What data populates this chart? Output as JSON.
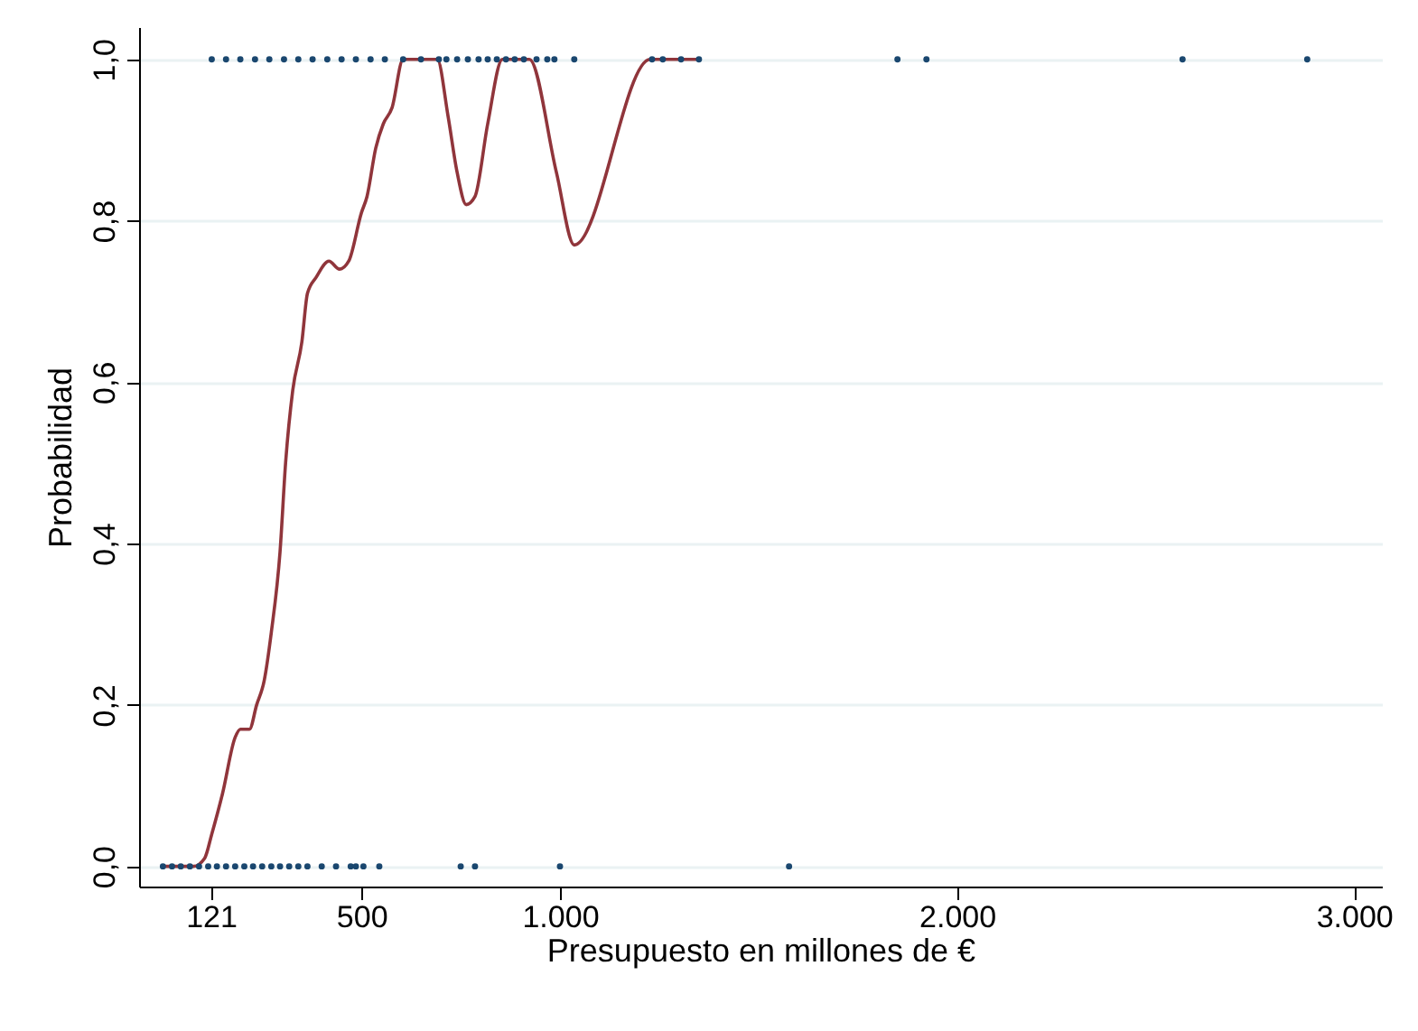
{
  "chart_data": {
    "type": "scatter",
    "xlabel": "Presupuesto en millones de €",
    "ylabel": "Probabilidad",
    "xlim": [
      -60,
      3070
    ],
    "ylim": [
      -0.025,
      1.04
    ],
    "xticks": [
      121,
      500,
      {
        "value": 1000,
        "label": "1.000"
      },
      {
        "value": 2000,
        "label": "2.000"
      },
      {
        "value": 3000,
        "label": "3.000"
      }
    ],
    "yticks": [
      {
        "value": 0,
        "label": "0,0"
      },
      {
        "value": 0.2,
        "label": "0,2"
      },
      {
        "value": 0.4,
        "label": "0,4"
      },
      {
        "value": 0.6,
        "label": "0,6"
      },
      {
        "value": 0.8,
        "label": "0,8"
      },
      {
        "value": 1,
        "label": "1,0"
      }
    ],
    "grid": "y",
    "marker": "circle",
    "series": [
      {
        "color": "#1a476f",
        "x": [
          123,
          159,
          195,
          232,
          268,
          305,
          341,
          377,
          414,
          450,
          486,
          523,
          559,
          605,
          650,
          695,
          714,
          741,
          768,
          795,
          818,
          841,
          864,
          886,
          909,
          941,
          968,
          986,
          1036,
          1232,
          1259,
          1305,
          1350,
          1850,
          1923,
          2568,
          2882
        ],
        "values": [
          1,
          1,
          1,
          1,
          1,
          1,
          1,
          1,
          1,
          1,
          1,
          1,
          1,
          1,
          1,
          1,
          1,
          1,
          1,
          1,
          1,
          1,
          1,
          1,
          1,
          1,
          1,
          1,
          1,
          1,
          1,
          1,
          1,
          1,
          1,
          1,
          1
        ]
      },
      {
        "color": "#1a476f",
        "x": [
          0,
          23,
          45,
          68,
          91,
          114,
          136,
          159,
          182,
          205,
          227,
          250,
          273,
          295,
          318,
          341,
          364,
          400,
          436,
          473,
          486,
          505,
          545,
          750,
          786,
          1000,
          1577
        ],
        "values": [
          0,
          0,
          0,
          0,
          0,
          0,
          0,
          0,
          0,
          0,
          0,
          0,
          0,
          0,
          0,
          0,
          0,
          0,
          0,
          0,
          0,
          0,
          0,
          0,
          0,
          0,
          0
        ]
      },
      {
        "type": "line",
        "color": "#90353b",
        "marker": "none",
        "x": [
          0,
          77,
          105,
          123,
          150,
          182,
          195,
          218,
          236,
          255,
          273,
          295,
          309,
          327,
          350,
          364,
          386,
          418,
          445,
          468,
          500,
          514,
          536,
          555,
          577,
          605,
          691,
          718,
          741,
          764,
          786,
          818,
          855,
          923,
          991,
          1036,
          1227,
          1350
        ],
        "values": [
          0,
          0,
          0.01,
          0.04,
          0.09,
          0.16,
          0.17,
          0.17,
          0.2,
          0.23,
          0.29,
          0.39,
          0.5,
          0.59,
          0.65,
          0.71,
          0.73,
          0.75,
          0.74,
          0.75,
          0.81,
          0.83,
          0.89,
          0.92,
          0.94,
          1,
          1,
          0.93,
          0.86,
          0.82,
          0.83,
          0.92,
          1,
          1,
          0.86,
          0.77,
          1,
          1
        ]
      }
    ]
  }
}
